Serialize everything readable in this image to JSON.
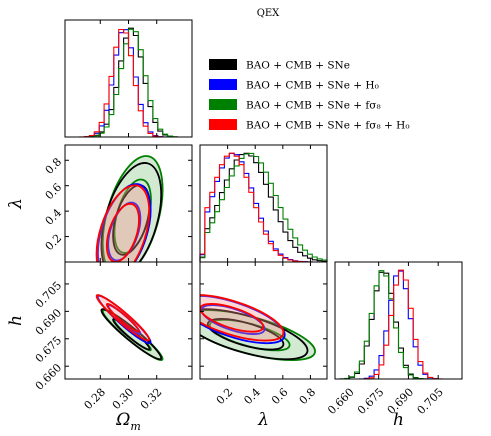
{
  "chart_data": {
    "type": "corner",
    "title": "QEX",
    "parameters": [
      {
        "key": "om",
        "label": "Ω",
        "sub": "m",
        "range": [
          0.255,
          0.345
        ],
        "ticks": [
          "0.28",
          "0.30",
          "0.32"
        ],
        "tick_values": [
          0.28,
          0.3,
          0.32
        ]
      },
      {
        "key": "lam",
        "label": "λ",
        "sub": "",
        "range": [
          0.0,
          0.92
        ],
        "ticks": [
          "0.2",
          "0.4",
          "0.6",
          "0.8"
        ],
        "tick_values": [
          0.2,
          0.4,
          0.6,
          0.8
        ]
      },
      {
        "key": "h",
        "label": "h",
        "sub": "",
        "range": [
          0.653,
          0.717
        ],
        "ticks": [
          "0.660",
          "0.675",
          "0.690",
          "0.705"
        ],
        "tick_values": [
          0.66,
          0.675,
          0.69,
          0.705
        ]
      }
    ],
    "legend": [
      {
        "label": "BAO + CMB + SNe",
        "color": "#000000"
      },
      {
        "label": "BAO + CMB + SNe + H₀",
        "color": "#0000ff"
      },
      {
        "label": "BAO + CMB + SNe + fσ₈",
        "color": "#008000"
      },
      {
        "label": "BAO + CMB + SNe + fσ₈ + H₀",
        "color": "#ff0000"
      }
    ],
    "series": [
      {
        "name": "BAO + CMB + SNe",
        "color": "#000000",
        "om": [
          0.302,
          0.0085
        ],
        "lam": [
          0.33,
          0.18
        ],
        "h": [
          0.6775,
          0.0055
        ]
      },
      {
        "name": "BAO + CMB + SNe + H₀",
        "color": "#0000ff",
        "om": [
          0.297,
          0.0075
        ],
        "lam": [
          0.24,
          0.15
        ],
        "h": [
          0.6855,
          0.0052
        ]
      },
      {
        "name": "BAO + CMB + SNe + fσ₈",
        "color": "#008000",
        "om": [
          0.303,
          0.0085
        ],
        "lam": [
          0.36,
          0.19
        ],
        "h": [
          0.677,
          0.0055
        ]
      },
      {
        "name": "BAO + CMB + SNe + fσ₈ + H₀",
        "color": "#ff0000",
        "om": [
          0.296,
          0.0075
        ],
        "lam": [
          0.23,
          0.15
        ],
        "h": [
          0.6865,
          0.005
        ]
      }
    ],
    "correlations": {
      "om_lam": 0.45,
      "om_h": -0.95,
      "lam_h": -0.65
    }
  }
}
